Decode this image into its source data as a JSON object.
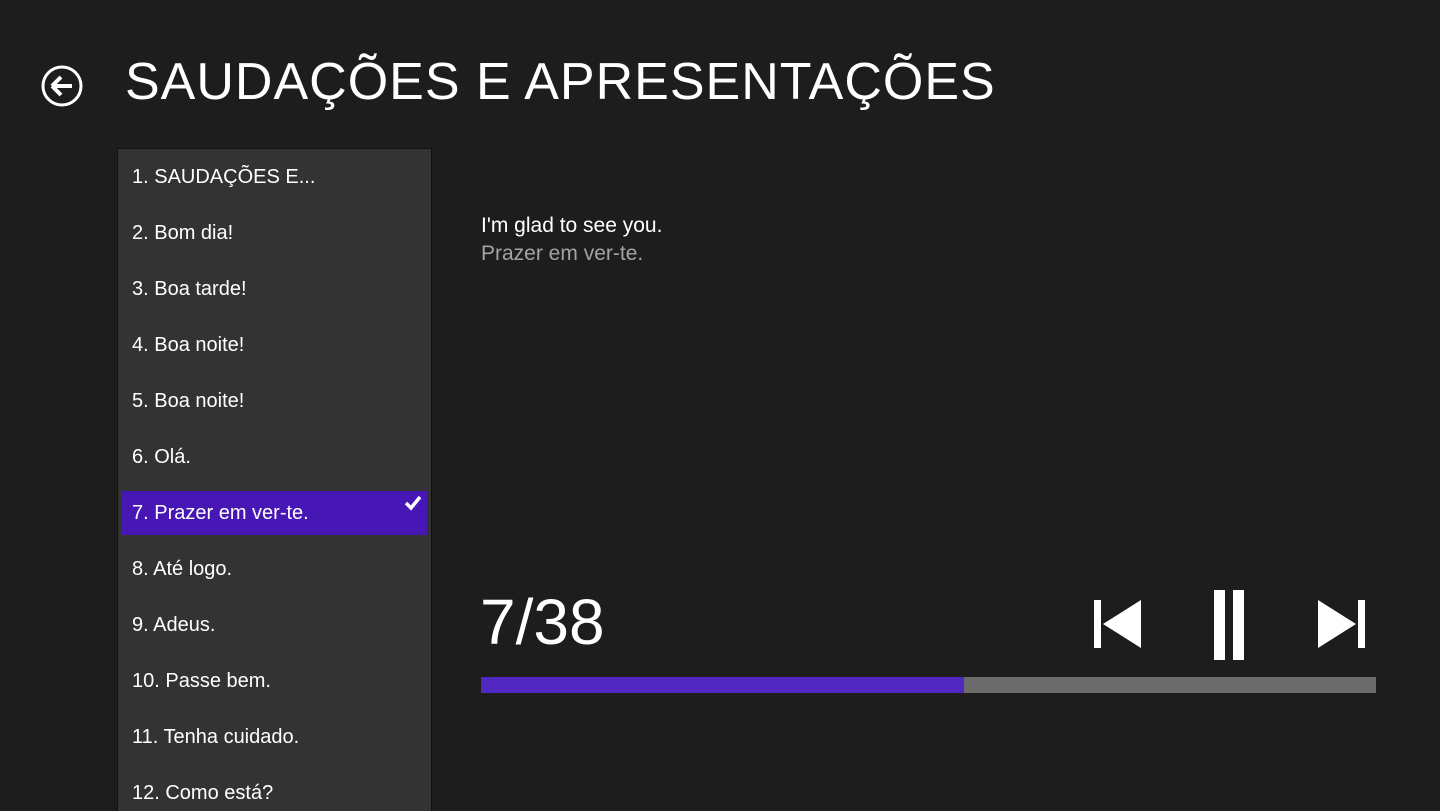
{
  "header": {
    "title": "SAUDAÇÕES E APRESENTAÇÕES"
  },
  "list": {
    "items": [
      "1. SAUDAÇÕES E...",
      "2. Bom dia!",
      "3. Boa tarde!",
      "4. Boa noite!",
      "5. Boa noite!",
      "6. Olá.",
      "7. Prazer em ver-te.",
      "8. Até logo.",
      "9. Adeus.",
      "10. Passe bem.",
      "11. Tenha cuidado.",
      "12. Como está?"
    ],
    "selected": 6
  },
  "phrase": {
    "text": "I'm glad to see you.",
    "translation": "Prazer em ver-te."
  },
  "player": {
    "counter": "7/38",
    "progress": 0.54
  }
}
